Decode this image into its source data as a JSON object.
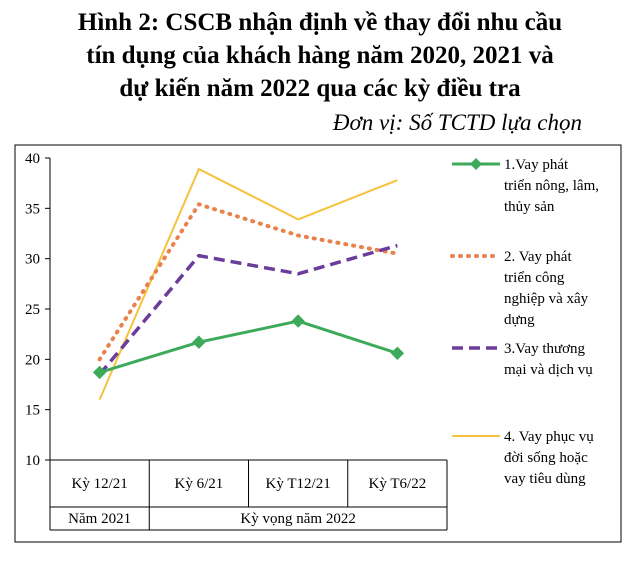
{
  "title_lines": [
    "Hình 2: CSCB nhận định về thay đổi nhu cầu",
    "tín dụng của khách hàng năm 2020, 2021 và",
    "dự kiến năm 2022 qua các kỳ điều tra"
  ],
  "unit": "Đơn vị: Số TCTD lựa chọn",
  "chart_data": {
    "type": "line",
    "categories": [
      "Kỳ 12/21",
      "Kỳ 6/21",
      "Kỳ T12/21",
      "Kỳ T6/22"
    ],
    "groups": [
      {
        "label": "Năm 2021",
        "span": 1
      },
      {
        "label": "Kỳ vọng năm 2022",
        "span": 3
      }
    ],
    "ylim": [
      10,
      40
    ],
    "yticks": [
      10,
      15,
      20,
      25,
      30,
      35,
      40
    ],
    "grid": false,
    "legend_position": "right",
    "series": [
      {
        "name_lines": [
          "1.Vay phát",
          "triển nông, lâm,",
          "thủy sản"
        ],
        "values": [
          18.7,
          21.7,
          23.8,
          20.6
        ],
        "color": "#3daa5a",
        "style": "solid-diamond"
      },
      {
        "name_lines": [
          "2. Vay phát",
          "triển công",
          "nghiệp và xây",
          "dựng"
        ],
        "values": [
          20.0,
          35.4,
          32.3,
          30.5
        ],
        "color": "#e8824a",
        "style": "dotted"
      },
      {
        "name_lines": [
          "3.Vay thương",
          "mại và dịch vụ"
        ],
        "values": [
          18.5,
          30.3,
          28.5,
          31.3
        ],
        "color": "#6a3d9a",
        "style": "dashed"
      },
      {
        "name_lines": [
          "4. Vay phục vụ",
          "đời sống hoặc",
          "vay tiêu dùng"
        ],
        "values": [
          16.0,
          38.9,
          33.9,
          37.8
        ],
        "color": "#f5c33b",
        "style": "thin"
      }
    ]
  }
}
